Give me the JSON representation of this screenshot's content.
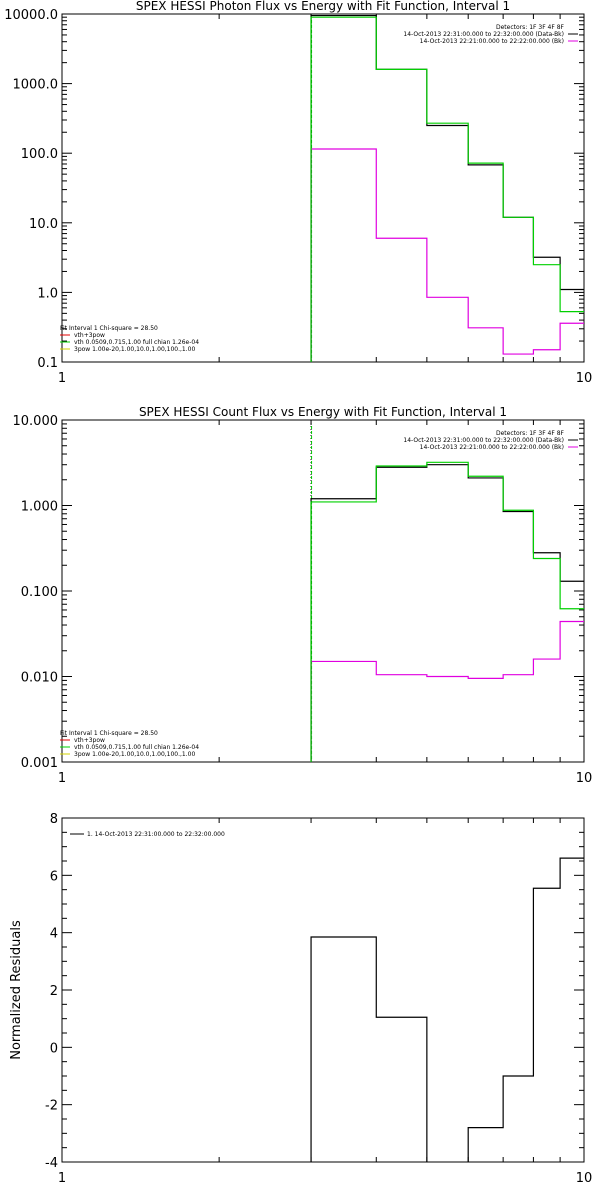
{
  "colors": {
    "axes": "#000000",
    "data": "#000000",
    "bk": "#e000e0",
    "model": "#00d000",
    "vth": "#e00000",
    "spav": "#00d000",
    "line3": "#d0d000"
  },
  "chart_data": [
    {
      "type": "line",
      "title": "SPEX HESSI Photon Flux vs Energy with Fit Function, Interval 1",
      "xscale": "log",
      "yscale": "log",
      "xlim": [
        1,
        10
      ],
      "ylim": [
        0.1,
        10000
      ],
      "xticks": [
        "1",
        "10"
      ],
      "yticks": [
        "0.1",
        "1.0",
        "10.0",
        "100.0",
        "1000.0",
        "10000.0"
      ],
      "marker_x": 3.0,
      "legend_tr": [
        "Detectors: 1F 3F 4F 8F",
        "14-Oct-2013 22:31:00.000 to 22:32:00.000 (Data-Bk)",
        "14-Oct-2013 22:21:00.000 to 22:22:00.000 (Bk)"
      ],
      "legend_bl": [
        "Fit Interval 1   Chi-square = 28.50",
        "vth+3pow",
        "vth 0.0509,0.715,1.00  full chian 1.26e-04",
        "3pow 1.00e-20,1.00,10.0,1.00,100.,1.00"
      ],
      "edges": [
        3,
        4,
        5,
        6,
        7,
        8,
        9,
        10
      ],
      "series": [
        {
          "role": "data",
          "values": [
            9500,
            1600,
            250,
            68,
            12,
            3.2,
            1.1
          ]
        },
        {
          "role": "bk",
          "values": [
            115,
            6,
            0.85,
            0.31,
            0.13,
            0.15,
            0.36
          ]
        },
        {
          "role": "model",
          "values": [
            9000,
            1600,
            270,
            72,
            12,
            2.5,
            0.53
          ]
        }
      ]
    },
    {
      "type": "line",
      "title": "SPEX HESSI Count Flux vs Energy with Fit Function, Interval 1",
      "xscale": "log",
      "yscale": "log",
      "xlim": [
        1,
        10
      ],
      "ylim": [
        0.001,
        10
      ],
      "xticks": [
        "1",
        "10"
      ],
      "yticks": [
        "0.001",
        "0.010",
        "0.100",
        "1.000",
        "10.000"
      ],
      "marker_x": 3.0,
      "legend_tr": [
        "Detectors: 1F 3F 4F 8F",
        "14-Oct-2013 22:31:00.000 to 22:32:00.000 (Data-Bk)",
        "14-Oct-2013 22:21:00.000 to 22:22:00.000 (Bk)"
      ],
      "legend_bl": [
        "Fit Interval 1   Chi-square = 28.50",
        "vth+3pow",
        "vth 0.0509,0.715,1.00  full chian 1.26e-04",
        "3pow 1.00e-20,1.00,10.0,1.00,100.,1.00"
      ],
      "edges": [
        3,
        4,
        5,
        6,
        7,
        8,
        9,
        10
      ],
      "series": [
        {
          "role": "data",
          "values": [
            1.2,
            2.8,
            3.0,
            2.1,
            0.85,
            0.28,
            0.13
          ]
        },
        {
          "role": "bk",
          "values": [
            0.015,
            0.0105,
            0.01,
            0.0095,
            0.0105,
            0.016,
            0.044
          ]
        },
        {
          "role": "model",
          "values": [
            1.1,
            2.9,
            3.2,
            2.2,
            0.88,
            0.24,
            0.062
          ]
        }
      ]
    },
    {
      "type": "line",
      "title": "",
      "ylabel": "Normalized Residuals",
      "xscale": "log",
      "yscale": "linear",
      "xlim": [
        1,
        10
      ],
      "ylim": [
        -4,
        8
      ],
      "xticks": [
        "1",
        "10"
      ],
      "yticks": [
        "-4",
        "-2",
        "0",
        "2",
        "4",
        "6",
        "8"
      ],
      "legend_tl": [
        "1. 14-Oct-2013 22:31:00.000 to 22:32:00.000"
      ],
      "edges": [
        3,
        4,
        5,
        6,
        7,
        8,
        9,
        10
      ],
      "series": [
        {
          "role": "data",
          "values": [
            3.85,
            1.05,
            -4.1,
            -2.8,
            -1.0,
            5.55,
            6.6
          ]
        }
      ]
    }
  ]
}
